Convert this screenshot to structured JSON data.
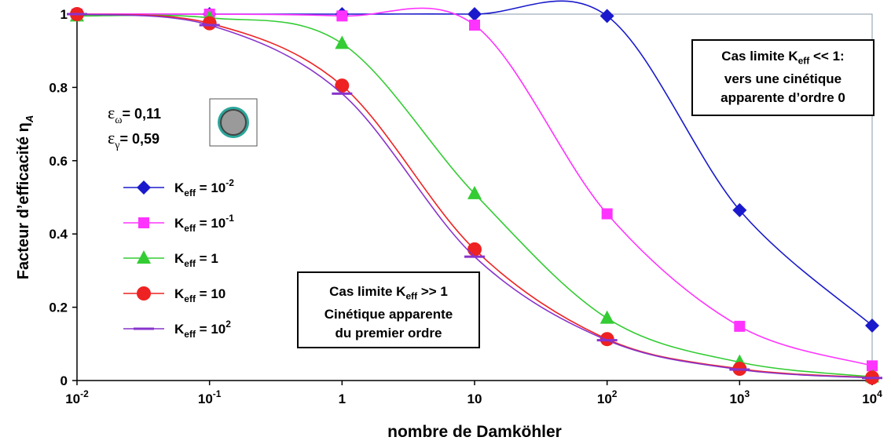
{
  "chart_data": {
    "type": "line",
    "xlabel": "nombre de Damköhler",
    "ylabel": "Facteur d’efficacité η",
    "ylabel_sub": "A",
    "x": [
      0.01,
      0.1,
      1,
      10,
      100,
      1000,
      10000
    ],
    "x_scale": "log",
    "xlim": [
      0.01,
      10000
    ],
    "x_tick_labels": [
      {
        "base": "10",
        "exp": "-2"
      },
      {
        "base": "10",
        "exp": "-1"
      },
      {
        "base": "1",
        "exp": ""
      },
      {
        "base": "10",
        "exp": ""
      },
      {
        "base": "10",
        "exp": "2"
      },
      {
        "base": "10",
        "exp": "3"
      },
      {
        "base": "10",
        "exp": "4"
      }
    ],
    "ylim": [
      0,
      1
    ],
    "y_ticks": [
      0,
      0.2,
      0.4,
      0.6,
      0.8,
      1
    ],
    "y_tick_labels": [
      "0",
      "0.2",
      "0.4",
      "0.6",
      "0.8",
      "1"
    ],
    "grid": false,
    "legend_position": "left",
    "series": [
      {
        "name": "Keff = 10-2",
        "legend": {
          "sym": "K",
          "sub": "eff",
          "rest": " = 10",
          "sup": "-2"
        },
        "color": "#1a1acc",
        "marker": "diamond",
        "values": [
          1.0,
          1.0,
          1.0,
          1.0,
          0.995,
          0.465,
          0.15
        ]
      },
      {
        "name": "Keff = 10-1",
        "legend": {
          "sym": "K",
          "sub": "eff",
          "rest": " = 10",
          "sup": "-1"
        },
        "color": "#ff33ff",
        "marker": "square",
        "values": [
          1.0,
          1.0,
          0.995,
          0.97,
          0.455,
          0.148,
          0.04
        ]
      },
      {
        "name": "Keff = 1",
        "legend": {
          "sym": "K",
          "sub": "eff",
          "rest": " = 1",
          "sup": ""
        },
        "color": "#33cc33",
        "marker": "triangle",
        "values": [
          0.995,
          0.99,
          0.92,
          0.51,
          0.17,
          0.05,
          0.01
        ]
      },
      {
        "name": "Keff = 10",
        "legend": {
          "sym": "K",
          "sub": "eff",
          "rest": " = 10",
          "sup": ""
        },
        "color": "#ee2222",
        "marker": "circle",
        "values": [
          1.0,
          0.975,
          0.805,
          0.358,
          0.113,
          0.032,
          0.008
        ]
      },
      {
        "name": "Keff = 102",
        "legend": {
          "sym": "K",
          "sub": "eff",
          "rest": " = 10",
          "sup": "2"
        },
        "color": "#8833cc",
        "marker": "dash",
        "values": [
          1.0,
          0.97,
          0.783,
          0.338,
          0.11,
          0.03,
          0.007
        ]
      }
    ],
    "params": [
      {
        "sym": "ε",
        "sub": "ω",
        "rest": "= 0,11"
      },
      {
        "sym": "ε",
        "sub": "γ",
        "rest": "= 0,59"
      }
    ],
    "pellet_icon": "pellet-cross-section-icon"
  },
  "annotations": {
    "low_k": {
      "line1_a": "Cas limite K",
      "line1_sub": "eff",
      "line1_b": " << 1:",
      "line2": "vers une cinétique",
      "line3": "apparente d’ordre 0"
    },
    "high_k": {
      "line1_a": "Cas limite K",
      "line1_sub": "eff",
      "line1_b": " >> 1",
      "line2": "Cinétique apparente",
      "line3": "du premier ordre"
    }
  }
}
